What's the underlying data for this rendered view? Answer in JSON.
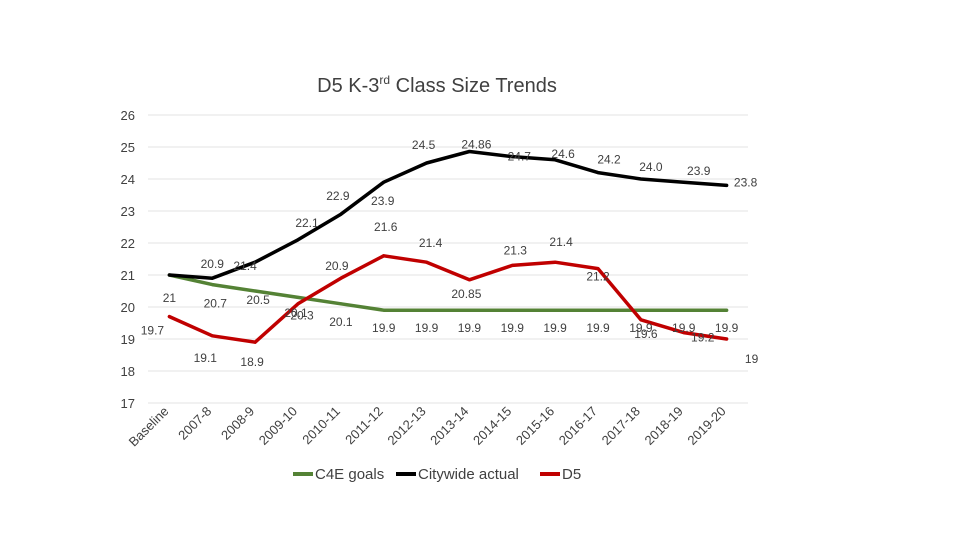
{
  "chart_data": {
    "type": "line",
    "title": "D5 K-3rd Class Size Trends",
    "title_parts": {
      "main": "D5 K-3",
      "sup": "rd",
      "rest": " Class Size Trends"
    },
    "categories": [
      "Baseline",
      "2007-8",
      "2008-9",
      "2009-10",
      "2010-11",
      "2011-12",
      "2012-13",
      "2013-14",
      "2014-15",
      "2015-16",
      "2016-17",
      "2017-18",
      "2018-19",
      "2019-20"
    ],
    "ylim": [
      17,
      26
    ],
    "yticks": [
      17,
      18,
      19,
      20,
      21,
      22,
      23,
      24,
      25,
      26
    ],
    "grid": true,
    "legend_position": "bottom",
    "series": [
      {
        "name": "C4E goals",
        "color": "#548235",
        "values": [
          21,
          20.7,
          20.5,
          20.3,
          20.1,
          19.9,
          19.9,
          19.9,
          19.9,
          19.9,
          19.9,
          19.9,
          19.9,
          19.9
        ],
        "labels": [
          "21",
          "20.7",
          "20.5",
          "20.3",
          "20.1",
          "19.9",
          "19.9",
          "19.9",
          "19.9",
          "19.9",
          "19.9",
          "19.9",
          "19.9",
          "19.9"
        ]
      },
      {
        "name": "Citywide actual",
        "color": "#000000",
        "values": [
          21,
          20.9,
          21.4,
          22.1,
          22.9,
          23.9,
          24.5,
          24.86,
          24.7,
          24.6,
          24.2,
          24.0,
          23.9,
          23.8
        ],
        "labels": [
          "",
          "20.9",
          "21.4",
          "22.1",
          "22.9",
          "23.9",
          "24.5",
          "24.86",
          "24.7",
          "24.6",
          "24.2",
          "24.0",
          "23.9",
          "23.8"
        ]
      },
      {
        "name": "D5",
        "color": "#c00000",
        "values": [
          19.7,
          19.1,
          18.9,
          20.1,
          20.9,
          21.6,
          21.4,
          20.85,
          21.3,
          21.4,
          21.2,
          19.6,
          19.2,
          19
        ],
        "labels": [
          "19.7",
          "19.1",
          "18.9",
          "20.1",
          "20.9",
          "21.6",
          "21.4",
          "20.85",
          "21.3",
          "21.4",
          "21.2",
          "19.6",
          "19.2",
          "19"
        ]
      }
    ]
  }
}
